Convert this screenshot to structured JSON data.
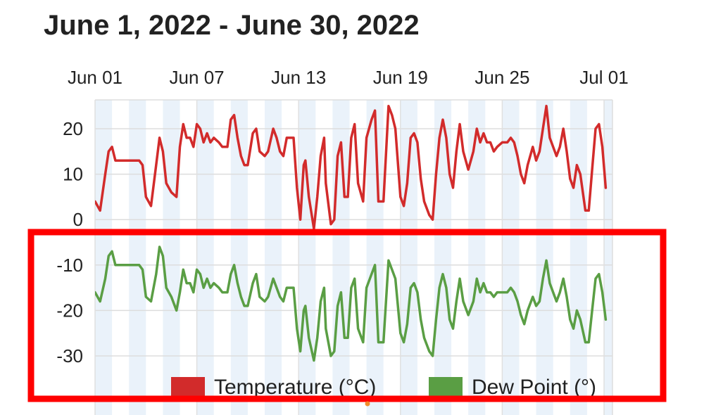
{
  "chart_data": {
    "type": "line",
    "title": "June 1, 2022 - June 30, 2022",
    "x_tick_labels": [
      "Jun 01",
      "Jun 07",
      "Jun 13",
      "Jun 19",
      "Jun 25",
      "Jul 01"
    ],
    "x_tick_days": [
      1,
      7,
      13,
      19,
      25,
      31
    ],
    "xlim": [
      1,
      31.3
    ],
    "y_tick_labels": [
      "20",
      "10",
      "0",
      "-10",
      "-20",
      "-30"
    ],
    "y_tick_values": [
      20,
      10,
      0,
      -10,
      -20,
      -30
    ],
    "ylim": [
      -30,
      26
    ],
    "xlabel": "",
    "ylabel": "",
    "legend_position": "bottom",
    "series": [
      {
        "name": "Temperature (°C)",
        "color": "#d22b2b",
        "points": [
          [
            1.0,
            4
          ],
          [
            1.3,
            2
          ],
          [
            1.6,
            10
          ],
          [
            1.8,
            15
          ],
          [
            2.0,
            16
          ],
          [
            2.2,
            13
          ],
          [
            2.6,
            13
          ],
          [
            3.0,
            13
          ],
          [
            3.3,
            13
          ],
          [
            3.6,
            13
          ],
          [
            3.8,
            12
          ],
          [
            4.0,
            5
          ],
          [
            4.3,
            3
          ],
          [
            4.6,
            12
          ],
          [
            4.8,
            18
          ],
          [
            5.0,
            15
          ],
          [
            5.2,
            8
          ],
          [
            5.5,
            6
          ],
          [
            5.8,
            5
          ],
          [
            6.0,
            16
          ],
          [
            6.2,
            21
          ],
          [
            6.4,
            18
          ],
          [
            6.6,
            18
          ],
          [
            6.8,
            16
          ],
          [
            7.0,
            21
          ],
          [
            7.2,
            20
          ],
          [
            7.4,
            17
          ],
          [
            7.6,
            19
          ],
          [
            7.8,
            17
          ],
          [
            8.0,
            18
          ],
          [
            8.3,
            17
          ],
          [
            8.5,
            16
          ],
          [
            8.8,
            16
          ],
          [
            9.0,
            22
          ],
          [
            9.2,
            23
          ],
          [
            9.4,
            18
          ],
          [
            9.6,
            14
          ],
          [
            9.8,
            12
          ],
          [
            10.0,
            12
          ],
          [
            10.3,
            19
          ],
          [
            10.5,
            20
          ],
          [
            10.7,
            15
          ],
          [
            11.0,
            14
          ],
          [
            11.2,
            15
          ],
          [
            11.5,
            20
          ],
          [
            11.7,
            18
          ],
          [
            11.9,
            15
          ],
          [
            12.1,
            14
          ],
          [
            12.3,
            18
          ],
          [
            12.5,
            18
          ],
          [
            12.7,
            18
          ],
          [
            12.9,
            7
          ],
          [
            13.1,
            0
          ],
          [
            13.3,
            12
          ],
          [
            13.4,
            13
          ],
          [
            13.6,
            5
          ],
          [
            13.9,
            -2
          ],
          [
            14.1,
            5
          ],
          [
            14.3,
            14
          ],
          [
            14.5,
            18
          ],
          [
            14.6,
            8
          ],
          [
            14.9,
            -1
          ],
          [
            15.1,
            0
          ],
          [
            15.3,
            14
          ],
          [
            15.5,
            17
          ],
          [
            15.7,
            5
          ],
          [
            15.9,
            5
          ],
          [
            16.1,
            18
          ],
          [
            16.3,
            21
          ],
          [
            16.5,
            8
          ],
          [
            16.8,
            4
          ],
          [
            17.0,
            18
          ],
          [
            17.3,
            22
          ],
          [
            17.5,
            24
          ],
          [
            17.7,
            4
          ],
          [
            18.0,
            4
          ],
          [
            18.3,
            25
          ],
          [
            18.5,
            23
          ],
          [
            18.7,
            20
          ],
          [
            19.0,
            5
          ],
          [
            19.2,
            3
          ],
          [
            19.4,
            8
          ],
          [
            19.6,
            18
          ],
          [
            19.8,
            19
          ],
          [
            20.0,
            17
          ],
          [
            20.2,
            9
          ],
          [
            20.4,
            4
          ],
          [
            20.7,
            1
          ],
          [
            20.9,
            0
          ],
          [
            21.1,
            10
          ],
          [
            21.3,
            18
          ],
          [
            21.5,
            22
          ],
          [
            21.7,
            18
          ],
          [
            21.9,
            10
          ],
          [
            22.1,
            7
          ],
          [
            22.3,
            15
          ],
          [
            22.5,
            21
          ],
          [
            22.7,
            15
          ],
          [
            23.0,
            11
          ],
          [
            23.3,
            15
          ],
          [
            23.5,
            20
          ],
          [
            23.7,
            17
          ],
          [
            23.9,
            19
          ],
          [
            24.1,
            17
          ],
          [
            24.3,
            17
          ],
          [
            24.5,
            15
          ],
          [
            24.7,
            16
          ],
          [
            25.0,
            17
          ],
          [
            25.3,
            17
          ],
          [
            25.5,
            18
          ],
          [
            25.7,
            17
          ],
          [
            25.9,
            14
          ],
          [
            26.1,
            10
          ],
          [
            26.3,
            8
          ],
          [
            26.5,
            12
          ],
          [
            26.8,
            16
          ],
          [
            27.0,
            13
          ],
          [
            27.2,
            15
          ],
          [
            27.4,
            20
          ],
          [
            27.6,
            25
          ],
          [
            27.8,
            18
          ],
          [
            28.0,
            16
          ],
          [
            28.2,
            14
          ],
          [
            28.4,
            16
          ],
          [
            28.6,
            20
          ],
          [
            28.8,
            15
          ],
          [
            29.0,
            9
          ],
          [
            29.2,
            7
          ],
          [
            29.4,
            12
          ],
          [
            29.6,
            10
          ],
          [
            29.9,
            2
          ],
          [
            30.1,
            2
          ],
          [
            30.3,
            11
          ],
          [
            30.5,
            20
          ],
          [
            30.7,
            21
          ],
          [
            30.9,
            16
          ],
          [
            31.1,
            7
          ]
        ]
      },
      {
        "name": "Dew Point (°)",
        "color": "#5a9e44",
        "points": [
          [
            1.0,
            -16
          ],
          [
            1.3,
            -18
          ],
          [
            1.6,
            -13
          ],
          [
            1.8,
            -8
          ],
          [
            2.0,
            -7
          ],
          [
            2.2,
            -10
          ],
          [
            2.6,
            -10
          ],
          [
            3.0,
            -10
          ],
          [
            3.3,
            -10
          ],
          [
            3.6,
            -10
          ],
          [
            3.8,
            -11
          ],
          [
            4.0,
            -17
          ],
          [
            4.3,
            -18
          ],
          [
            4.6,
            -12
          ],
          [
            4.8,
            -6
          ],
          [
            5.0,
            -8
          ],
          [
            5.2,
            -15
          ],
          [
            5.5,
            -17
          ],
          [
            5.8,
            -20
          ],
          [
            6.0,
            -16
          ],
          [
            6.2,
            -11
          ],
          [
            6.4,
            -14
          ],
          [
            6.6,
            -14
          ],
          [
            6.8,
            -16
          ],
          [
            7.0,
            -11
          ],
          [
            7.2,
            -12
          ],
          [
            7.4,
            -15
          ],
          [
            7.6,
            -13
          ],
          [
            7.8,
            -15
          ],
          [
            8.0,
            -14
          ],
          [
            8.3,
            -15
          ],
          [
            8.5,
            -16
          ],
          [
            8.8,
            -16
          ],
          [
            9.0,
            -12
          ],
          [
            9.2,
            -10
          ],
          [
            9.4,
            -14
          ],
          [
            9.6,
            -17
          ],
          [
            9.8,
            -19
          ],
          [
            10.0,
            -19
          ],
          [
            10.3,
            -14
          ],
          [
            10.5,
            -12
          ],
          [
            10.7,
            -17
          ],
          [
            11.0,
            -18
          ],
          [
            11.2,
            -17
          ],
          [
            11.5,
            -13
          ],
          [
            11.7,
            -15
          ],
          [
            11.9,
            -17
          ],
          [
            12.1,
            -18
          ],
          [
            12.3,
            -15
          ],
          [
            12.5,
            -15
          ],
          [
            12.7,
            -15
          ],
          [
            12.9,
            -24
          ],
          [
            13.1,
            -29
          ],
          [
            13.3,
            -20
          ],
          [
            13.4,
            -19
          ],
          [
            13.6,
            -26
          ],
          [
            13.9,
            -31
          ],
          [
            14.1,
            -26
          ],
          [
            14.3,
            -18
          ],
          [
            14.5,
            -15
          ],
          [
            14.6,
            -24
          ],
          [
            14.9,
            -30
          ],
          [
            15.1,
            -29
          ],
          [
            15.3,
            -19
          ],
          [
            15.5,
            -16
          ],
          [
            15.7,
            -26
          ],
          [
            15.9,
            -26
          ],
          [
            16.1,
            -15
          ],
          [
            16.3,
            -13
          ],
          [
            16.5,
            -24
          ],
          [
            16.8,
            -27
          ],
          [
            17.0,
            -15
          ],
          [
            17.3,
            -12
          ],
          [
            17.5,
            -10
          ],
          [
            17.7,
            -27
          ],
          [
            18.0,
            -27
          ],
          [
            18.3,
            -9
          ],
          [
            18.5,
            -11
          ],
          [
            18.7,
            -13
          ],
          [
            19.0,
            -25
          ],
          [
            19.2,
            -27
          ],
          [
            19.4,
            -23
          ],
          [
            19.6,
            -15
          ],
          [
            19.8,
            -14
          ],
          [
            20.0,
            -16
          ],
          [
            20.2,
            -22
          ],
          [
            20.4,
            -26
          ],
          [
            20.7,
            -29
          ],
          [
            20.9,
            -30
          ],
          [
            21.1,
            -22
          ],
          [
            21.3,
            -15
          ],
          [
            21.5,
            -12
          ],
          [
            21.7,
            -15
          ],
          [
            21.9,
            -22
          ],
          [
            22.1,
            -24
          ],
          [
            22.3,
            -18
          ],
          [
            22.5,
            -13
          ],
          [
            22.7,
            -18
          ],
          [
            23.0,
            -21
          ],
          [
            23.3,
            -18
          ],
          [
            23.5,
            -13
          ],
          [
            23.7,
            -16
          ],
          [
            23.9,
            -14
          ],
          [
            24.1,
            -16
          ],
          [
            24.3,
            -16
          ],
          [
            24.5,
            -17
          ],
          [
            24.7,
            -16
          ],
          [
            25.0,
            -16
          ],
          [
            25.3,
            -16
          ],
          [
            25.5,
            -15
          ],
          [
            25.7,
            -16
          ],
          [
            25.9,
            -18
          ],
          [
            26.1,
            -21
          ],
          [
            26.3,
            -23
          ],
          [
            26.5,
            -20
          ],
          [
            26.8,
            -17
          ],
          [
            27.0,
            -19
          ],
          [
            27.2,
            -18
          ],
          [
            27.4,
            -13
          ],
          [
            27.6,
            -9
          ],
          [
            27.8,
            -14
          ],
          [
            28.0,
            -16
          ],
          [
            28.2,
            -18
          ],
          [
            28.4,
            -16
          ],
          [
            28.6,
            -13
          ],
          [
            28.8,
            -17
          ],
          [
            29.0,
            -22
          ],
          [
            29.2,
            -24
          ],
          [
            29.4,
            -20
          ],
          [
            29.6,
            -22
          ],
          [
            29.9,
            -27
          ],
          [
            30.1,
            -27
          ],
          [
            30.3,
            -20
          ],
          [
            30.5,
            -13
          ],
          [
            30.7,
            -12
          ],
          [
            30.9,
            -16
          ],
          [
            31.1,
            -22
          ]
        ]
      }
    ]
  },
  "annotation": {
    "highlight_color": "#ff0000"
  }
}
